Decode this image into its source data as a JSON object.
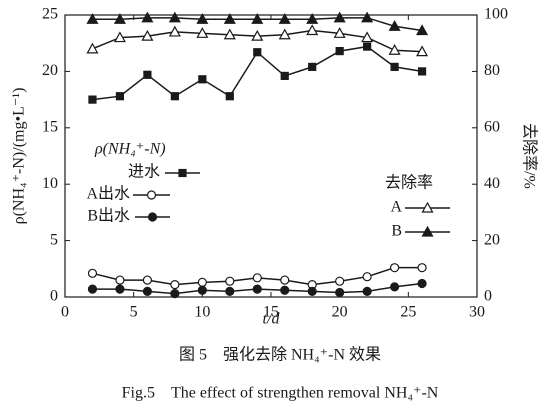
{
  "chart_data": {
    "type": "line",
    "x_label": "t/d",
    "y_label": "ρ(NH₄⁺-N)/(mg•L⁻¹)",
    "y2_label": "去除率/%",
    "x": [
      2,
      4,
      6,
      8,
      10,
      12,
      14,
      16,
      18,
      20,
      22,
      24,
      26
    ],
    "xlim": [
      0,
      30
    ],
    "xticks": [
      0,
      5,
      10,
      15,
      20,
      25,
      30
    ],
    "ylim": [
      0,
      25
    ],
    "yticks": [
      0,
      5,
      10,
      15,
      20,
      25
    ],
    "y2lim": [
      0,
      100
    ],
    "y2ticks": [
      0,
      20,
      40,
      60,
      80,
      100
    ],
    "legend_titles": [
      "ρ(NH₄⁺-N)",
      "去除率"
    ],
    "series": [
      {
        "name": "进水",
        "color": "#1a1a1a",
        "marker": "square",
        "values": [
          17.5,
          17.8,
          19.7,
          17.8,
          19.3,
          17.8,
          21.7,
          19.6,
          20.4,
          21.8,
          22.2,
          20.4,
          20.0
        ]
      },
      {
        "name": "A出水",
        "color": "#1a1a1a",
        "marker": "circle-open",
        "values": [
          2.1,
          1.5,
          1.5,
          1.1,
          1.3,
          1.4,
          1.7,
          1.5,
          1.1,
          1.4,
          1.8,
          2.6,
          2.6
        ]
      },
      {
        "name": "B出水",
        "color": "#1a1a1a",
        "marker": "circle",
        "values": [
          0.7,
          0.7,
          0.5,
          0.3,
          0.6,
          0.5,
          0.7,
          0.6,
          0.5,
          0.4,
          0.5,
          0.9,
          1.2
        ]
      },
      {
        "name": "A",
        "color": "#1a1a1a",
        "marker": "triangle-open",
        "axis": "y2",
        "values": [
          88,
          92,
          92.5,
          94,
          93.5,
          93,
          92.5,
          93,
          94.5,
          93.5,
          92,
          87.5,
          87
        ]
      },
      {
        "name": "B",
        "color": "#1a1a1a",
        "marker": "triangle",
        "axis": "y2",
        "values": [
          98.5,
          98.5,
          99,
          99,
          98.5,
          98.5,
          98.5,
          98.5,
          98.5,
          99,
          99,
          96,
          94.5
        ]
      }
    ],
    "captions": [
      "图 5　强化去除 NH₄⁺-N 效果",
      "Fig.5　The effect of strengthen removal NH₄⁺-N"
    ]
  }
}
